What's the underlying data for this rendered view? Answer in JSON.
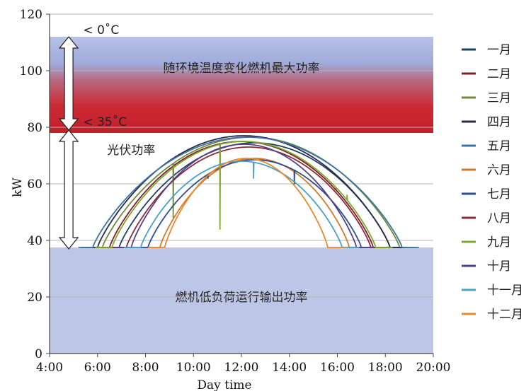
{
  "chart_data": {
    "type": "line",
    "xlabel": "Day time",
    "ylabel": "kW",
    "xlim": [
      4,
      20
    ],
    "ylim": [
      0,
      120
    ],
    "x_ticks": [
      {
        "v": 4,
        "label": "4:00"
      },
      {
        "v": 6,
        "label": "6:00"
      },
      {
        "v": 8,
        "label": "8:00"
      },
      {
        "v": 10,
        "label": "10:00"
      },
      {
        "v": 12,
        "label": "12:00"
      },
      {
        "v": 14,
        "label": "14:00"
      },
      {
        "v": 16,
        "label": "16:00"
      },
      {
        "v": 18,
        "label": "18:00"
      },
      {
        "v": 20,
        "label": "20:00"
      }
    ],
    "y_ticks": [
      {
        "v": 0,
        "label": "0"
      },
      {
        "v": 20,
        "label": "20"
      },
      {
        "v": 40,
        "label": "40"
      },
      {
        "v": 60,
        "label": "60"
      },
      {
        "v": 80,
        "label": "80"
      },
      {
        "v": 100,
        "label": "100"
      },
      {
        "v": 120,
        "label": "120"
      }
    ],
    "grid": "horizontal",
    "legend_position": "right",
    "bands": [
      {
        "name": "max",
        "y0": 78,
        "y1": 112,
        "label": "随环境温度变化燃机最大功率",
        "label_y": 101
      },
      {
        "name": "low",
        "y0": 0,
        "y1": 37.5,
        "label": "燃机低负荷运行输出功率",
        "label_y": 20
      }
    ],
    "annotations": [
      {
        "text": "< 0˚C",
        "x": 5.4,
        "y": 113
      },
      {
        "text": "< 35˚C",
        "x": 5.4,
        "y": 80.5
      },
      {
        "text": "光伏功率",
        "x": 6.4,
        "y": 70.5
      }
    ],
    "arrows": [
      {
        "x": 4.8,
        "y_top": 112,
        "y_bottom": 79
      },
      {
        "x": 4.8,
        "y_top": 79,
        "y_bottom": 37
      }
    ],
    "series": [
      {
        "name": "一月",
        "color": "#1f3f66",
        "base": 37.5,
        "start": 6.9,
        "end": 18.2,
        "peak": 74.5
      },
      {
        "name": "二月",
        "color": "#7a1f2d",
        "base": 37.5,
        "start": 6.5,
        "end": 17.5,
        "peak": 75,
        "dips": [
          {
            "x": 15.7,
            "y": 60
          },
          {
            "x": 15.9,
            "y": 58
          }
        ]
      },
      {
        "name": "三月",
        "color": "#6f8a3a",
        "base": 37.5,
        "start": 6.2,
        "end": 18.6,
        "peak": 76.5,
        "dips": [
          {
            "x": 9.15,
            "y": 48
          }
        ]
      },
      {
        "name": "四月",
        "color": "#2b2a4a",
        "base": 37.5,
        "start": 6.0,
        "end": 18.2,
        "peak": 77
      },
      {
        "name": "五月",
        "color": "#3b74a6",
        "base": 37.5,
        "start": 5.8,
        "end": 18.7,
        "peak": 76.5
      },
      {
        "name": "六月",
        "color": "#d27a2c",
        "base": 37.5,
        "start": 8.6,
        "end": 16.5,
        "peak": 69
      },
      {
        "name": "七月",
        "color": "#2e4f8c",
        "base": 37.5,
        "start": 8.1,
        "end": 17.0,
        "peak": 68.5,
        "dips": [
          {
            "x": 10.6,
            "y": 62
          },
          {
            "x": 14.2,
            "y": 60
          }
        ]
      },
      {
        "name": "八月",
        "color": "#8e2a3a",
        "base": 37.5,
        "start": 7.2,
        "end": 17.4,
        "peak": 73
      },
      {
        "name": "九月",
        "color": "#7eaa2a",
        "base": 37.5,
        "start": 6.6,
        "end": 17.6,
        "peak": 75,
        "dips": [
          {
            "x": 11.1,
            "y": 44
          },
          {
            "x": 16.4,
            "y": 56
          }
        ]
      },
      {
        "name": "十月",
        "color": "#524287",
        "base": 37.5,
        "start": 7.4,
        "end": 16.8,
        "peak": 74
      },
      {
        "name": "十一月",
        "color": "#4aa0c8",
        "base": 37.5,
        "start": 7.8,
        "end": 16.2,
        "peak": 68,
        "dips": [
          {
            "x": 12.5,
            "y": 62
          }
        ]
      },
      {
        "name": "十二月",
        "color": "#e8892b",
        "base": 37.5,
        "start": 8.8,
        "end": 15.6,
        "peak": 69
      }
    ]
  }
}
